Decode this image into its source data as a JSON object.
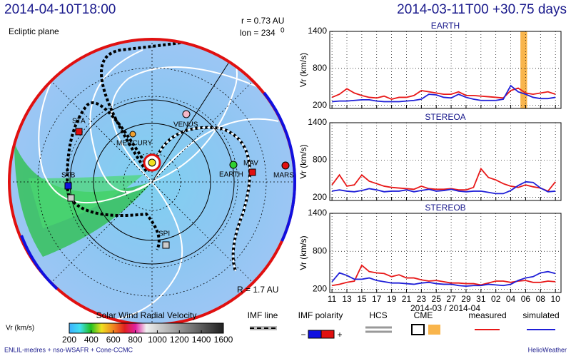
{
  "header": {
    "left": "2014-04-10T18:00",
    "right": "2014-03-11T00 +30.75 days"
  },
  "polar": {
    "plane": "Ecliptic plane",
    "r_label": "r = 0.73 AU",
    "lon_label": "lon = 234",
    "lon_sup": "0",
    "R_label": "R = 1.7 AU",
    "bodies": [
      "STA",
      "VENUS",
      "MERCURY",
      "EARTH",
      "MAV",
      "MARS",
      "STB",
      "SPI"
    ]
  },
  "colorbar": {
    "title": "Solar Wind Radial Velocity",
    "label": "Vr (km/s)",
    "lim": [
      200,
      1600
    ],
    "ticks": [
      200,
      400,
      600,
      800,
      1000,
      1200,
      1400,
      1600
    ]
  },
  "legend": {
    "imf_line": "IMF line",
    "imf_polarity": "IMF polarity",
    "minus": "−",
    "plus": "+",
    "hcs": "HCS",
    "cme": "CME",
    "measured": "measured",
    "simulated": "simulated"
  },
  "footer": {
    "left": "ENLIL-medres + nso-WSAFR + Cone-CCMC",
    "right": "HelioWeather"
  },
  "chart_data": [
    {
      "type": "line",
      "title": "EARTH",
      "ylabel": "Vr (km/s)",
      "ylim": [
        150,
        1400
      ],
      "yticks": [
        200,
        800,
        1400
      ],
      "xlim": [
        -0.3,
        30.75
      ],
      "cme": [
        25.3,
        26.2
      ],
      "cme_color": "#f9b54c",
      "x": [
        0,
        1,
        2,
        3,
        4,
        5,
        6,
        7,
        8,
        9,
        10,
        11,
        12,
        13,
        14,
        15,
        16,
        17,
        18,
        19,
        20,
        21,
        22,
        23,
        24,
        25,
        26,
        27,
        28,
        29,
        30
      ],
      "series": [
        {
          "name": "measured",
          "color": "#e81818",
          "values": [
            330,
            380,
            470,
            400,
            360,
            330,
            320,
            350,
            300,
            330,
            330,
            360,
            440,
            420,
            400,
            380,
            380,
            420,
            360,
            360,
            350,
            340,
            330,
            320,
            440,
            480,
            400,
            380,
            400,
            420,
            380
          ]
        },
        {
          "name": "simulated",
          "color": "#1f1fd8",
          "values": [
            260,
            270,
            270,
            280,
            290,
            290,
            270,
            260,
            260,
            260,
            270,
            280,
            300,
            380,
            370,
            330,
            320,
            380,
            330,
            300,
            280,
            280,
            280,
            300,
            520,
            420,
            380,
            330,
            310,
            310,
            330
          ]
        }
      ]
    },
    {
      "type": "line",
      "title": "STEREOA",
      "ylabel": "Vr (km/s)",
      "ylim": [
        150,
        1400
      ],
      "yticks": [
        200,
        800,
        1400
      ],
      "xlim": [
        -0.3,
        30.75
      ],
      "x": [
        0,
        1,
        2,
        3,
        4,
        5,
        6,
        7,
        8,
        9,
        10,
        11,
        12,
        13,
        14,
        15,
        16,
        17,
        18,
        19,
        20,
        21,
        22,
        23,
        24,
        25,
        26,
        27,
        28,
        29,
        30
      ],
      "series": [
        {
          "name": "measured",
          "color": "#e81818",
          "values": [
            400,
            560,
            380,
            400,
            560,
            460,
            420,
            380,
            360,
            350,
            340,
            330,
            380,
            340,
            330,
            330,
            340,
            320,
            320,
            360,
            660,
            520,
            480,
            420,
            380,
            360,
            400,
            370,
            350,
            300,
            450
          ]
        },
        {
          "name": "simulated",
          "color": "#1f1fd8",
          "values": [
            300,
            320,
            300,
            290,
            310,
            340,
            320,
            290,
            300,
            300,
            320,
            290,
            310,
            330,
            300,
            310,
            330,
            300,
            290,
            300,
            300,
            280,
            260,
            260,
            310,
            390,
            450,
            440,
            350,
            290,
            300
          ]
        }
      ]
    },
    {
      "type": "line",
      "title": "STEREOB",
      "ylabel": "Vr (km/s)",
      "ylim": [
        150,
        1400
      ],
      "yticks": [
        200,
        800,
        1400
      ],
      "xlim": [
        -0.3,
        30.75
      ],
      "xlabel": "2014-03 / 2014-04",
      "xticks": [
        {
          "value": 0,
          "label": "11"
        },
        {
          "value": 2,
          "label": "13"
        },
        {
          "value": 4,
          "label": "15"
        },
        {
          "value": 6,
          "label": "17"
        },
        {
          "value": 8,
          "label": "19"
        },
        {
          "value": 10,
          "label": "21"
        },
        {
          "value": 12,
          "label": "23"
        },
        {
          "value": 14,
          "label": "25"
        },
        {
          "value": 16,
          "label": "27"
        },
        {
          "value": 18,
          "label": "29"
        },
        {
          "value": 20,
          "label": "31"
        },
        {
          "value": 22,
          "label": "02"
        },
        {
          "value": 24,
          "label": "04"
        },
        {
          "value": 26,
          "label": "06"
        },
        {
          "value": 28,
          "label": "08"
        },
        {
          "value": 30,
          "label": "10"
        }
      ],
      "x": [
        0,
        1,
        2,
        3,
        4,
        5,
        6,
        7,
        8,
        9,
        10,
        11,
        12,
        13,
        14,
        15,
        16,
        17,
        18,
        19,
        20,
        21,
        22,
        23,
        24,
        25,
        26,
        27,
        28,
        29,
        30
      ],
      "series": [
        {
          "name": "measured",
          "color": "#e81818",
          "values": [
            260,
            280,
            310,
            330,
            580,
            480,
            460,
            450,
            400,
            430,
            380,
            380,
            350,
            330,
            340,
            320,
            300,
            300,
            290,
            290,
            270,
            300,
            330,
            330,
            310,
            330,
            340,
            310,
            310,
            330,
            320
          ]
        },
        {
          "name": "simulated",
          "color": "#1f1fd8",
          "values": [
            320,
            460,
            420,
            360,
            360,
            380,
            340,
            320,
            300,
            300,
            290,
            280,
            300,
            310,
            290,
            280,
            280,
            260,
            250,
            260,
            260,
            280,
            270,
            260,
            280,
            340,
            380,
            400,
            460,
            480,
            450
          ]
        }
      ]
    }
  ]
}
